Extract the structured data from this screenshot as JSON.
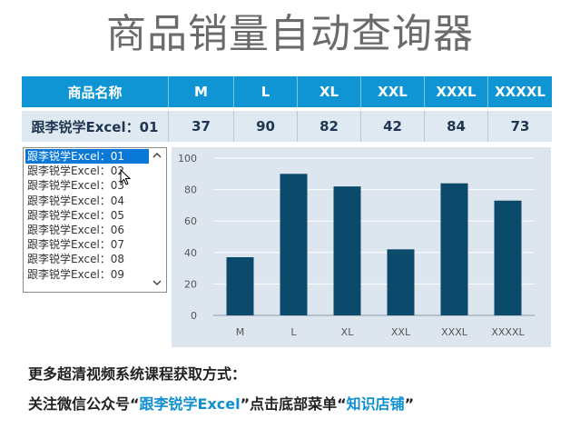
{
  "title": "商品销量自动查询器",
  "table": {
    "headers": [
      "商品名称",
      "M",
      "L",
      "XL",
      "XXL",
      "XXXL",
      "XXXXL"
    ],
    "row": [
      "跟李锐学Excel：01",
      "37",
      "90",
      "82",
      "42",
      "84",
      "73"
    ]
  },
  "listbox": {
    "items": [
      "跟李锐学Excel：01",
      "跟李锐学Excel：02",
      "跟李锐学Excel：03",
      "跟李锐学Excel：04",
      "跟李锐学Excel：05",
      "跟李锐学Excel：06",
      "跟李锐学Excel：07",
      "跟李锐学Excel：08",
      "跟李锐学Excel：09"
    ],
    "selected_index": 0,
    "scroll_up_icon": "chevron-up-icon",
    "scroll_down_icon": "chevron-down-icon"
  },
  "chart_data": {
    "type": "bar",
    "categories": [
      "M",
      "L",
      "XL",
      "XXL",
      "XXXL",
      "XXXXL"
    ],
    "values": [
      37,
      90,
      82,
      42,
      84,
      73
    ],
    "title": "",
    "xlabel": "",
    "ylabel": "",
    "ylim": [
      0,
      100
    ],
    "yticks": [
      "0",
      "20",
      "40",
      "60",
      "80",
      "100"
    ],
    "grid": true,
    "bar_color": "#0b4a6b",
    "background_color": "#dde6ee"
  },
  "footer": {
    "line1": "更多超清视频系统课程获取方式：",
    "line2_a": "关注微信公众号“",
    "line2_b": "跟李锐学Excel",
    "line2_c": "”点击底部菜单“",
    "line2_d": "知识店铺",
    "line2_e": "”"
  },
  "colors": {
    "header_bg": "#0f95d3",
    "row_bg": "#dfe9f2",
    "accent": "#0f8fd1",
    "selection": "#0a78d7"
  }
}
